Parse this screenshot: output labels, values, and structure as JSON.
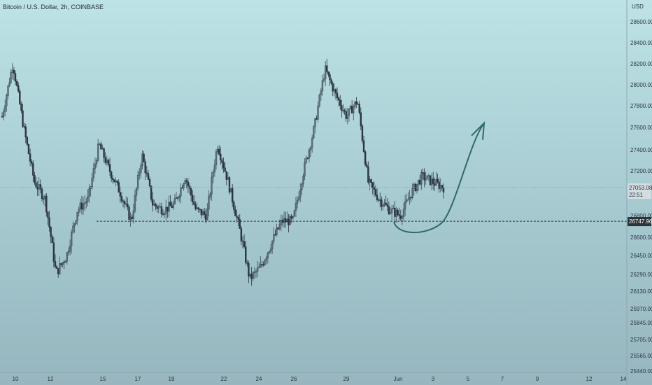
{
  "header": {
    "title": "Bitcoin / U.S. Dollar, 2h, COINBASE"
  },
  "colors": {
    "up": "#3f4f5b",
    "down": "#2b3540",
    "arrow": "#2f6b63",
    "price_label_bg": "#d3dde1",
    "support_label_bg": "#2b3238"
  },
  "chart_data": {
    "type": "candlestick",
    "title": "Bitcoin / U.S. Dollar, 2h, COINBASE",
    "y_axis_label": "USD",
    "y_ticks": [
      "28600.00",
      "28400.00",
      "28200.00",
      "28000.00",
      "27800.00",
      "27600.00",
      "27400.00",
      "27200.00",
      "26800.00",
      "26600.00",
      "26450.00",
      "26290.00",
      "26130.00",
      "25970.00",
      "25845.00",
      "25705.00",
      "25565.00",
      "25440.00"
    ],
    "x_ticks": [
      "10",
      "12",
      "15",
      "17",
      "19",
      "22",
      "24",
      "26",
      "29",
      "Jun",
      "3",
      "5",
      "7",
      "9",
      "12",
      "14"
    ],
    "current_price": {
      "value": "27053.08",
      "countdown": "22:51"
    },
    "support_level": {
      "value": "26747.96",
      "style": "dashed"
    },
    "projection": {
      "type": "curved-arrow",
      "from_price": 26740,
      "low_price": 26660,
      "to_price": 27640,
      "direction": "up"
    },
    "price_path": [
      {
        "date": "May 9",
        "close": 27700
      },
      {
        "date": "May 10",
        "close": 28200
      },
      {
        "date": "May 10",
        "close": 27600
      },
      {
        "date": "May 11",
        "close": 27100
      },
      {
        "date": "May 11",
        "close": 26950
      },
      {
        "date": "May 12",
        "close": 26300
      },
      {
        "date": "May 12",
        "close": 26450
      },
      {
        "date": "May 13",
        "close": 26850
      },
      {
        "date": "May 14",
        "close": 26950
      },
      {
        "date": "May 15",
        "close": 27450
      },
      {
        "date": "May 16",
        "close": 27200
      },
      {
        "date": "May 17",
        "close": 27000
      },
      {
        "date": "May 17",
        "close": 26750
      },
      {
        "date": "May 18",
        "close": 27350
      },
      {
        "date": "May 19",
        "close": 26900
      },
      {
        "date": "May 19",
        "close": 26850
      },
      {
        "date": "May 20",
        "close": 26900
      },
      {
        "date": "May 21",
        "close": 27150
      },
      {
        "date": "May 21",
        "close": 26850
      },
      {
        "date": "May 22",
        "close": 26800
      },
      {
        "date": "May 23",
        "close": 27450
      },
      {
        "date": "May 23",
        "close": 27100
      },
      {
        "date": "May 24",
        "close": 26700
      },
      {
        "date": "May 24",
        "close": 26250
      },
      {
        "date": "May 25",
        "close": 26350
      },
      {
        "date": "May 25",
        "close": 26550
      },
      {
        "date": "May 26",
        "close": 26750
      },
      {
        "date": "May 27",
        "close": 26750
      },
      {
        "date": "May 27",
        "close": 27200
      },
      {
        "date": "May 28",
        "close": 27600
      },
      {
        "date": "May 28",
        "close": 28150
      },
      {
        "date": "May 29",
        "close": 27900
      },
      {
        "date": "May 30",
        "close": 27700
      },
      {
        "date": "May 30",
        "close": 27850
      },
      {
        "date": "May 31",
        "close": 27100
      },
      {
        "date": "May 31",
        "close": 26950
      },
      {
        "date": "Jun 1",
        "close": 26850
      },
      {
        "date": "Jun 1",
        "close": 26800
      },
      {
        "date": "Jun 2",
        "close": 27000
      },
      {
        "date": "Jun 2",
        "close": 27150
      },
      {
        "date": "Jun 3",
        "close": 27100
      },
      {
        "date": "Jun 3",
        "close": 27053
      }
    ]
  }
}
